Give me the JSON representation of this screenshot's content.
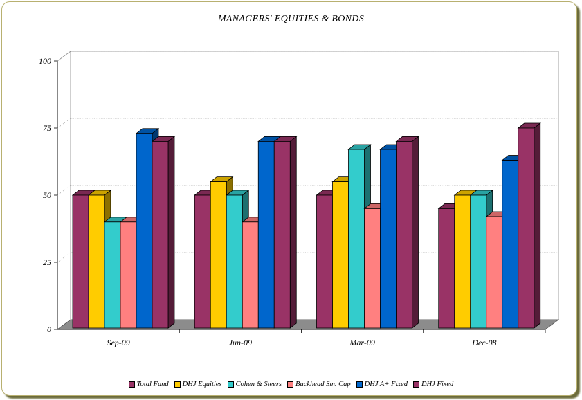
{
  "chart_data": {
    "type": "bar",
    "title": "MANAGERS' EQUITIES & BONDS",
    "categories": [
      "Sep-09",
      "Jun-09",
      "Mar-09",
      "Dec-08"
    ],
    "ylim": [
      0,
      100
    ],
    "yticks": [
      0,
      25,
      50,
      75,
      100
    ],
    "grid": true,
    "legend_position": "bottom",
    "series": [
      {
        "name": "Total Fund",
        "color": "#993366",
        "values": [
          50,
          50,
          50,
          45
        ]
      },
      {
        "name": "DHJ Equities",
        "color": "#ffcc00",
        "values": [
          50,
          55,
          55,
          50
        ]
      },
      {
        "name": "Cohen & Steers",
        "color": "#33cccc",
        "values": [
          40,
          50,
          67,
          50
        ]
      },
      {
        "name": "Buckhead Sm. Cap",
        "color": "#ff8080",
        "values": [
          40,
          40,
          45,
          42
        ]
      },
      {
        "name": "DHJ A+ Fixed",
        "color": "#0066cc",
        "values": [
          73,
          70,
          67,
          63
        ]
      },
      {
        "name": "DHJ Fixed",
        "color": "#993366",
        "values": [
          70,
          70,
          70,
          75
        ]
      }
    ]
  }
}
